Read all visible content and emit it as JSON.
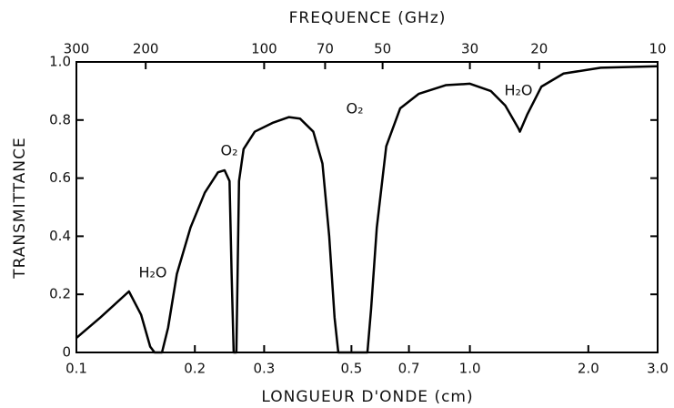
{
  "chart_data": {
    "type": "line",
    "title": "FREQUENCE (GHz)",
    "xlabel": "LONGUEUR D'ONDE (cm)",
    "ylabel": "TRANSMITTANCE",
    "xscale": "log",
    "xlim": [
      0.1,
      3.0
    ],
    "xticks": [
      0.1,
      0.2,
      0.3,
      0.5,
      0.7,
      {
        "value": 1,
        "label": "1.0"
      },
      {
        "value": 2,
        "label": "2.0"
      },
      {
        "value": 3,
        "label": "3.0"
      }
    ],
    "x2lim": [
      300,
      10
    ],
    "x2ticks": [
      300,
      200,
      100,
      70,
      50,
      30,
      20,
      10
    ],
    "ylim": [
      0,
      1
    ],
    "yticks": [
      0,
      0.2,
      0.4,
      0.6,
      0.8,
      {
        "value": 1,
        "label": "1.0"
      }
    ],
    "annotations": [
      "H₂O",
      "O₂",
      "O₂",
      "H₂O"
    ],
    "series": [
      {
        "color": "#000000",
        "x": [
          0.1,
          0.115,
          0.136,
          0.146,
          0.154,
          0.158,
          0.165,
          0.171,
          0.18,
          0.195,
          0.212,
          0.229,
          0.238,
          0.245,
          0.248,
          0.251,
          0.255,
          0.259,
          0.266,
          0.284,
          0.315,
          0.347,
          0.37,
          0.4,
          0.422,
          0.439,
          0.453,
          0.463,
          0.549,
          0.561,
          0.58,
          0.613,
          0.665,
          0.741,
          0.868,
          1.0,
          1.13,
          1.23,
          1.33,
          1.34,
          1.4,
          1.52,
          1.73,
          2.15,
          3.0
        ],
        "values": [
          0.05,
          0.12,
          0.21,
          0.13,
          0.02,
          0,
          0,
          0.085,
          0.27,
          0.43,
          0.55,
          0.62,
          0.627,
          0.59,
          0.27,
          0,
          0,
          0.59,
          0.7,
          0.76,
          0.79,
          0.81,
          0.805,
          0.76,
          0.65,
          0.4,
          0.12,
          0,
          0,
          0.15,
          0.43,
          0.71,
          0.84,
          0.89,
          0.92,
          0.925,
          0.9,
          0.85,
          0.77,
          0.76,
          0.82,
          0.915,
          0.96,
          0.98,
          0.985
        ]
      }
    ]
  }
}
